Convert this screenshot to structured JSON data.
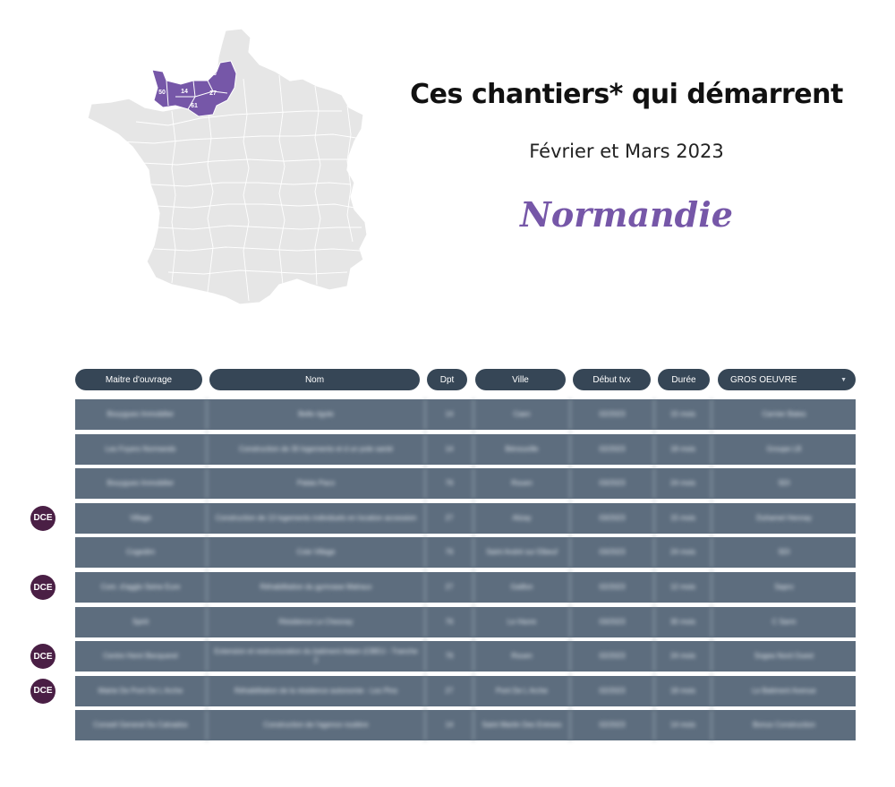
{
  "header": {
    "title": "Ces chantiers* qui démarrent",
    "subtitle": "Février et Mars 2023",
    "region": "Normandie"
  },
  "map": {
    "labels": [
      "76",
      "50",
      "14",
      "27",
      "61"
    ],
    "highlight_color": "#7657a8",
    "base_color": "#e6e6e6"
  },
  "table": {
    "columns": [
      "Maitre d'ouvrage",
      "Nom",
      "Dpt",
      "Ville",
      "Début tvx",
      "Durée"
    ],
    "filter_select": "GROS OEUVRE",
    "rows": [
      {
        "badge": "",
        "cells": [
          "Bouygues Immobilier",
          "Belle rigole",
          "14",
          "Caen",
          "02/2023",
          "15 mois",
          "Carnier Bates"
        ]
      },
      {
        "badge": "",
        "cells": [
          "Les Foyers Normands",
          "Construction de 30 logements et d un pole santé",
          "14",
          "Bénouville",
          "02/2023",
          "18 mois",
          "Groupe LB"
        ]
      },
      {
        "badge": "",
        "cells": [
          "Bouygues Immobilier",
          "Palais Paco",
          "76",
          "Rouen",
          "03/2023",
          "24 mois",
          "SDI"
        ]
      },
      {
        "badge": "DCE",
        "cells": [
          "Village",
          "Construction de 13 logements individuels en location accession",
          "27",
          "Alizay",
          "03/2023",
          "15 mois",
          "Duhamel Hennay"
        ]
      },
      {
        "badge": "",
        "cells": [
          "Cogedim",
          "Cote Village",
          "76",
          "Saint André sur Elbeuf",
          "03/2023",
          "24 mois",
          "SDI"
        ]
      },
      {
        "badge": "DCE",
        "cells": [
          "Com. d'agglo Seine Eure",
          "Réhabilitation du gymnase Malraux",
          "27",
          "Gaillon",
          "02/2023",
          "12 mois",
          "Sapro"
        ]
      },
      {
        "badge": "",
        "cells": [
          "Spirit",
          "Résidence Le Chesnay",
          "76",
          "Le Havre",
          "03/2023",
          "30 mois",
          "C Sarm"
        ]
      },
      {
        "badge": "DCE",
        "cells": [
          "Centre Henri Becquerel",
          "Extension et restructuration du batiment Adam (CBEU - Tranche 2",
          "76",
          "Rouen",
          "02/2023",
          "24 mois",
          "Sogea Nord Ouest"
        ]
      },
      {
        "badge": "DCE",
        "cells": [
          "Mairie De Pont De L Arche",
          "Réhabilitation de la résidence autonomie - Les Pins",
          "27",
          "Pont De L Arche",
          "02/2023",
          "18 mois",
          "Le Batiment Avenue"
        ]
      },
      {
        "badge": "",
        "cells": [
          "Conseil General Du Calvados",
          "Construction de l'agence routière",
          "14",
          "Saint Martin Des Entrees",
          "02/2023",
          "14 mois",
          "Bonus Construction"
        ]
      }
    ]
  }
}
